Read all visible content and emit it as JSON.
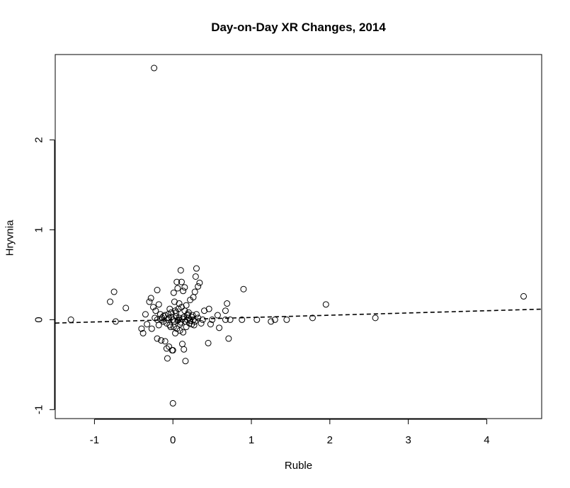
{
  "chart_data": {
    "type": "scatter",
    "title": "Day-on-Day XR Changes, 2014",
    "xlabel": "Ruble",
    "ylabel": "Hryvnia",
    "xlim": [
      -1.5,
      4.7
    ],
    "ylim": [
      -1.1,
      2.95
    ],
    "xticks": [
      -1,
      0,
      1,
      2,
      3,
      4
    ],
    "yticks": [
      -1,
      0,
      1,
      2
    ],
    "grid": false,
    "legend": "none",
    "regression_line": {
      "intercept": 0.0,
      "slope": 0.025,
      "style": "dashed"
    },
    "points": [
      [
        -0.24,
        2.8
      ],
      [
        4.47,
        0.26
      ],
      [
        2.58,
        0.02
      ],
      [
        1.95,
        0.17
      ],
      [
        1.78,
        0.02
      ],
      [
        1.45,
        0.0
      ],
      [
        1.3,
        0.0
      ],
      [
        1.25,
        -0.02
      ],
      [
        1.07,
        0.0
      ],
      [
        0.9,
        0.34
      ],
      [
        0.88,
        0.0
      ],
      [
        0.73,
        0.0
      ],
      [
        0.71,
        -0.21
      ],
      [
        0.69,
        0.18
      ],
      [
        0.67,
        0.1
      ],
      [
        0.67,
        0.0
      ],
      [
        0.59,
        -0.09
      ],
      [
        0.57,
        0.05
      ],
      [
        0.45,
        -0.26
      ],
      [
        0.46,
        0.12
      ],
      [
        0.48,
        -0.05
      ],
      [
        0.5,
        0.0
      ],
      [
        0.4,
        0.1
      ],
      [
        0.38,
        0.0
      ],
      [
        0.36,
        -0.04
      ],
      [
        -1.3,
        0.0
      ],
      [
        -0.8,
        0.2
      ],
      [
        -0.75,
        0.31
      ],
      [
        -0.73,
        -0.02
      ],
      [
        -0.6,
        0.13
      ],
      [
        -0.4,
        -0.1
      ],
      [
        -0.38,
        -0.15
      ],
      [
        -0.35,
        0.06
      ],
      [
        -0.33,
        -0.05
      ],
      [
        -0.3,
        0.2
      ],
      [
        -0.28,
        0.24
      ],
      [
        -0.27,
        -0.1
      ],
      [
        -0.25,
        0.14
      ],
      [
        -0.23,
        0.02
      ],
      [
        -0.22,
        0.1
      ],
      [
        -0.2,
        -0.21
      ],
      [
        -0.2,
        0.33
      ],
      [
        -0.18,
        0.17
      ],
      [
        -0.15,
        0.0
      ],
      [
        -0.15,
        -0.23
      ],
      [
        -0.12,
        0.04
      ],
      [
        -0.1,
        -0.24
      ],
      [
        -0.08,
        -0.32
      ],
      [
        -0.07,
        -0.43
      ],
      [
        -0.06,
        0.0
      ],
      [
        -0.05,
        -0.3
      ],
      [
        -0.04,
        0.12
      ],
      [
        -0.03,
        -0.08
      ],
      [
        -0.02,
        0.03
      ],
      [
        -0.01,
        -0.34
      ],
      [
        0.0,
        -0.34
      ],
      [
        0.0,
        -0.93
      ],
      [
        0.01,
        0.3
      ],
      [
        0.02,
        0.2
      ],
      [
        0.03,
        -0.15
      ],
      [
        0.04,
        0.08
      ],
      [
        0.05,
        0.42
      ],
      [
        0.06,
        0.35
      ],
      [
        0.07,
        0.0
      ],
      [
        0.08,
        0.18
      ],
      [
        0.09,
        -0.05
      ],
      [
        0.1,
        0.55
      ],
      [
        0.11,
        0.42
      ],
      [
        0.12,
        -0.27
      ],
      [
        0.13,
        0.32
      ],
      [
        0.14,
        -0.33
      ],
      [
        0.15,
        0.36
      ],
      [
        0.16,
        -0.46
      ],
      [
        0.17,
        0.16
      ],
      [
        0.18,
        0.05
      ],
      [
        0.2,
        0.08
      ],
      [
        0.22,
        0.22
      ],
      [
        0.24,
        -0.05
      ],
      [
        0.26,
        0.25
      ],
      [
        0.28,
        0.31
      ],
      [
        0.29,
        0.48
      ],
      [
        0.3,
        0.57
      ],
      [
        0.32,
        0.37
      ],
      [
        0.34,
        0.41
      ],
      [
        0.3,
        0.06
      ],
      [
        -0.1,
        0.05
      ],
      [
        -0.05,
        0.02
      ],
      [
        0.0,
        0.0
      ],
      [
        0.02,
        -0.02
      ],
      [
        0.04,
        0.04
      ],
      [
        0.06,
        -0.01
      ],
      [
        0.08,
        0.02
      ],
      [
        0.1,
        -0.03
      ],
      [
        0.12,
        0.01
      ],
      [
        0.14,
        0.03
      ],
      [
        0.16,
        -0.02
      ],
      [
        0.18,
        0.0
      ],
      [
        0.2,
        0.02
      ],
      [
        0.22,
        -0.01
      ],
      [
        0.24,
        0.03
      ],
      [
        -0.08,
        -0.04
      ],
      [
        -0.06,
        0.06
      ],
      [
        -0.04,
        -0.06
      ],
      [
        -0.02,
        0.08
      ],
      [
        0.01,
        -0.08
      ],
      [
        0.03,
        0.1
      ],
      [
        0.05,
        -0.1
      ],
      [
        0.07,
        0.12
      ],
      [
        0.09,
        -0.12
      ],
      [
        0.11,
        0.14
      ],
      [
        0.13,
        -0.14
      ],
      [
        0.15,
        0.1
      ],
      [
        0.17,
        -0.08
      ],
      [
        0.19,
        0.06
      ],
      [
        0.21,
        -0.04
      ],
      [
        -0.14,
        0.02
      ],
      [
        -0.12,
        -0.02
      ],
      [
        -0.16,
        0.06
      ],
      [
        -0.18,
        -0.06
      ],
      [
        -0.2,
        0.0
      ],
      [
        0.26,
        0.0
      ],
      [
        0.28,
        -0.02
      ],
      [
        0.32,
        0.02
      ],
      [
        0.25,
        0.05
      ],
      [
        0.27,
        -0.06
      ]
    ]
  }
}
